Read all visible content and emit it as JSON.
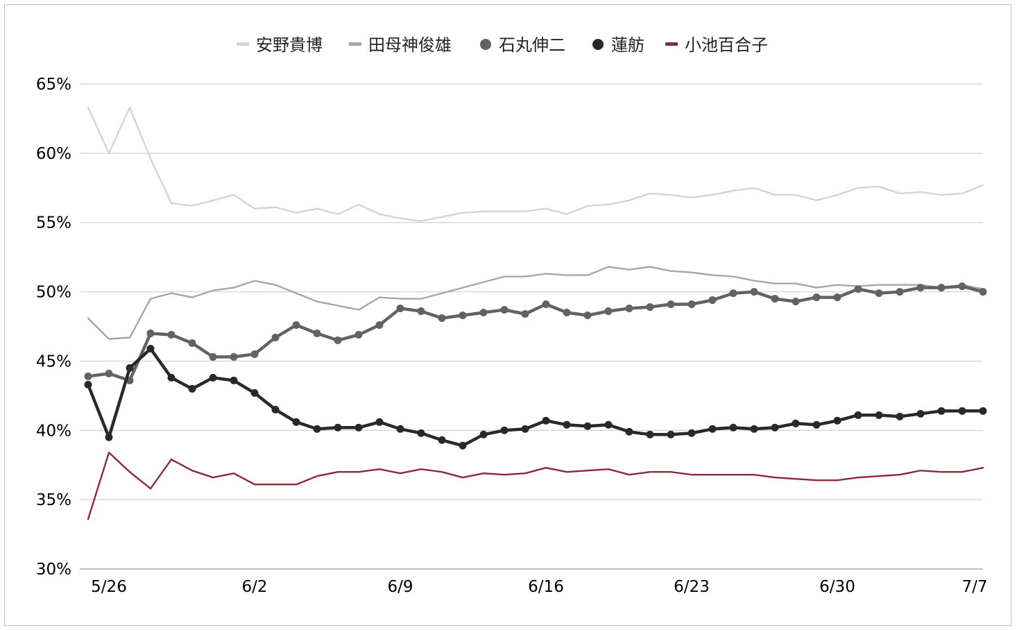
{
  "chart_data": {
    "type": "line",
    "ylim": [
      30,
      65
    ],
    "yticks": [
      30,
      35,
      40,
      45,
      50,
      55,
      60,
      65
    ],
    "ytick_labels": [
      "30%",
      "35%",
      "40%",
      "45%",
      "50%",
      "55%",
      "60%",
      "65%"
    ],
    "x_start": "5/25",
    "x_end": "7/7",
    "xtick_labels": [
      "5/26",
      "6/2",
      "6/9",
      "6/16",
      "6/23",
      "6/30",
      "7/7"
    ],
    "legend_position": "top",
    "grid": true,
    "series": [
      {
        "name": "安野貴博",
        "color": "#d2d4d5",
        "style": "line",
        "values": [
          63.3,
          60.0,
          63.3,
          59.6,
          56.4,
          56.2,
          56.6,
          57.0,
          56.0,
          56.1,
          55.7,
          56.0,
          55.6,
          56.3,
          55.6,
          55.3,
          55.1,
          55.4,
          55.7,
          55.8,
          55.8,
          55.8,
          56.0,
          55.6,
          56.2,
          56.3,
          56.6,
          57.1,
          57.0,
          56.8,
          57.0,
          57.3,
          57.5,
          57.0,
          57.0,
          56.6,
          57.0,
          57.5,
          57.6,
          57.1,
          57.2,
          57.0,
          57.1,
          57.7
        ]
      },
      {
        "name": "田母神俊雄",
        "color": "#a3a7aa",
        "style": "line",
        "values": [
          48.1,
          46.6,
          46.7,
          49.5,
          49.9,
          49.6,
          50.1,
          50.3,
          50.8,
          50.5,
          49.9,
          49.3,
          49.0,
          48.7,
          49.6,
          49.5,
          49.5,
          49.9,
          50.3,
          50.7,
          51.1,
          51.1,
          51.3,
          51.2,
          51.2,
          51.8,
          51.6,
          51.8,
          51.5,
          51.4,
          51.2,
          51.1,
          50.8,
          50.6,
          50.6,
          50.3,
          50.5,
          50.4,
          50.5,
          50.5,
          50.5,
          50.3,
          50.5,
          50.2
        ]
      },
      {
        "name": "石丸伸二",
        "color": "#5e6367",
        "style": "marker",
        "values": [
          43.9,
          44.1,
          43.6,
          47.0,
          46.9,
          46.3,
          45.3,
          45.3,
          45.5,
          46.7,
          47.6,
          47.0,
          46.5,
          46.9,
          47.6,
          48.8,
          48.6,
          48.1,
          48.3,
          48.5,
          48.7,
          48.4,
          49.1,
          48.5,
          48.3,
          48.6,
          48.8,
          48.9,
          49.1,
          49.1,
          49.4,
          49.9,
          50.0,
          49.5,
          49.3,
          49.6,
          49.6,
          50.2,
          49.9,
          50.0,
          50.3,
          50.3,
          50.4,
          50.0
        ]
      },
      {
        "name": "蓮舫",
        "color": "#262a2f",
        "style": "marker",
        "values": [
          43.3,
          39.5,
          44.5,
          45.9,
          43.8,
          43.0,
          43.8,
          43.6,
          42.7,
          41.5,
          40.6,
          40.1,
          40.2,
          40.2,
          40.6,
          40.1,
          39.8,
          39.3,
          38.9,
          39.7,
          40.0,
          40.1,
          40.7,
          40.4,
          40.3,
          40.4,
          39.9,
          39.7,
          39.7,
          39.8,
          40.1,
          40.2,
          40.1,
          40.2,
          40.5,
          40.4,
          40.7,
          41.1,
          41.1,
          41.0,
          41.2,
          41.4,
          41.4,
          41.4
        ]
      },
      {
        "name": "小池百合子",
        "color": "#8b2a35",
        "style": "line",
        "values": [
          33.6,
          38.4,
          37.0,
          35.8,
          37.9,
          37.1,
          36.6,
          36.9,
          36.1,
          36.1,
          36.1,
          36.7,
          37.0,
          37.0,
          37.2,
          36.9,
          37.2,
          37.0,
          36.6,
          36.9,
          36.8,
          36.9,
          37.3,
          37.0,
          37.1,
          37.2,
          36.8,
          37.0,
          37.0,
          36.8,
          36.8,
          36.8,
          36.8,
          36.6,
          36.5,
          36.4,
          36.4,
          36.6,
          36.7,
          36.8,
          37.1,
          37.0,
          37.0,
          37.3
        ]
      }
    ]
  }
}
